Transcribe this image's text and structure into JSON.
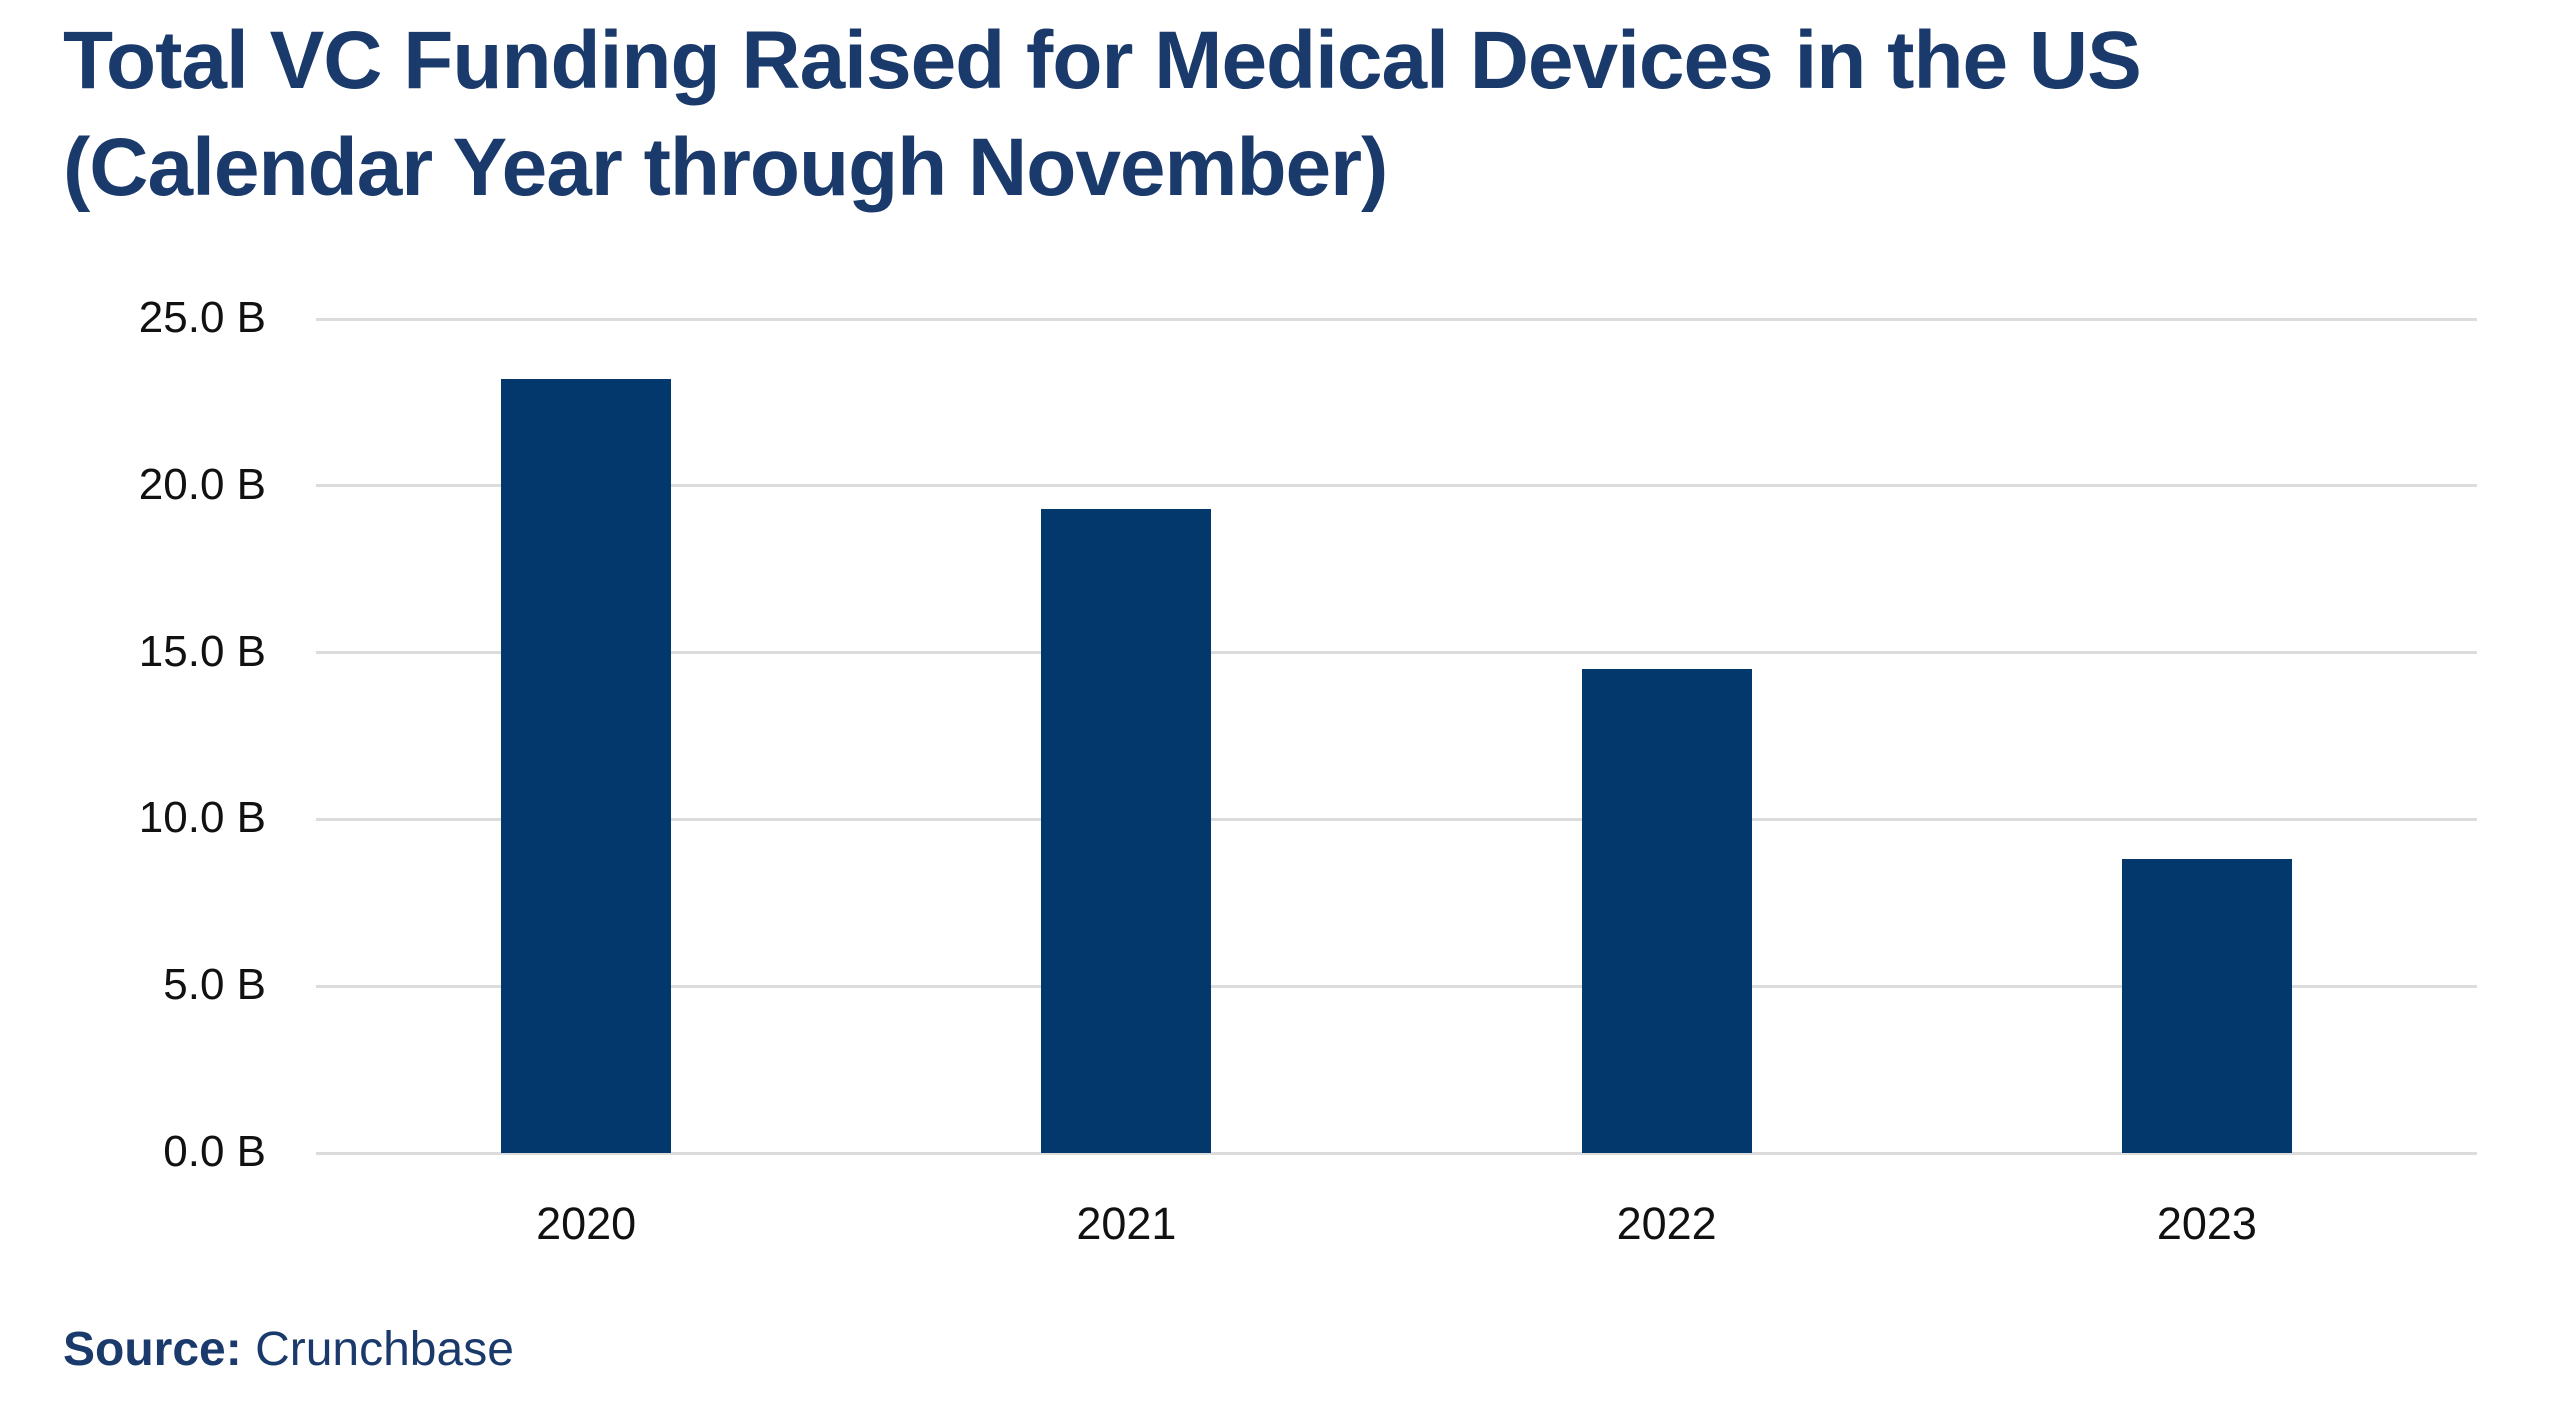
{
  "title": {
    "line1": "Total VC Funding Raised for Medical Devices in the US",
    "line2": "(Calendar Year through November)"
  },
  "source": {
    "label": "Source:",
    "value": "Crunchbase"
  },
  "colors": {
    "bar": "#03386c",
    "title_text": "#1b3a6c",
    "gridline": "#dcdcdc",
    "axis_text": "#111111",
    "background": "#ffffff"
  },
  "chart_data": {
    "type": "bar",
    "title": "Total VC Funding Raised for Medical Devices in the US (Calendar Year through November)",
    "categories": [
      "2020",
      "2021",
      "2022",
      "2023"
    ],
    "values": [
      23.2,
      19.3,
      14.5,
      8.8
    ],
    "unit": "B",
    "xlabel": "",
    "ylabel": "",
    "ylim": [
      0,
      25
    ],
    "y_tick_labels": [
      "0.0 B",
      "5.0 B",
      "10.0 B",
      "15.0 B",
      "20.0 B",
      "25.0 B"
    ],
    "y_tick_values": [
      0,
      5,
      10,
      15,
      20,
      25
    ],
    "grid": "horizontal-only",
    "legend_position": "none",
    "annotation": "Source: Crunchbase"
  }
}
